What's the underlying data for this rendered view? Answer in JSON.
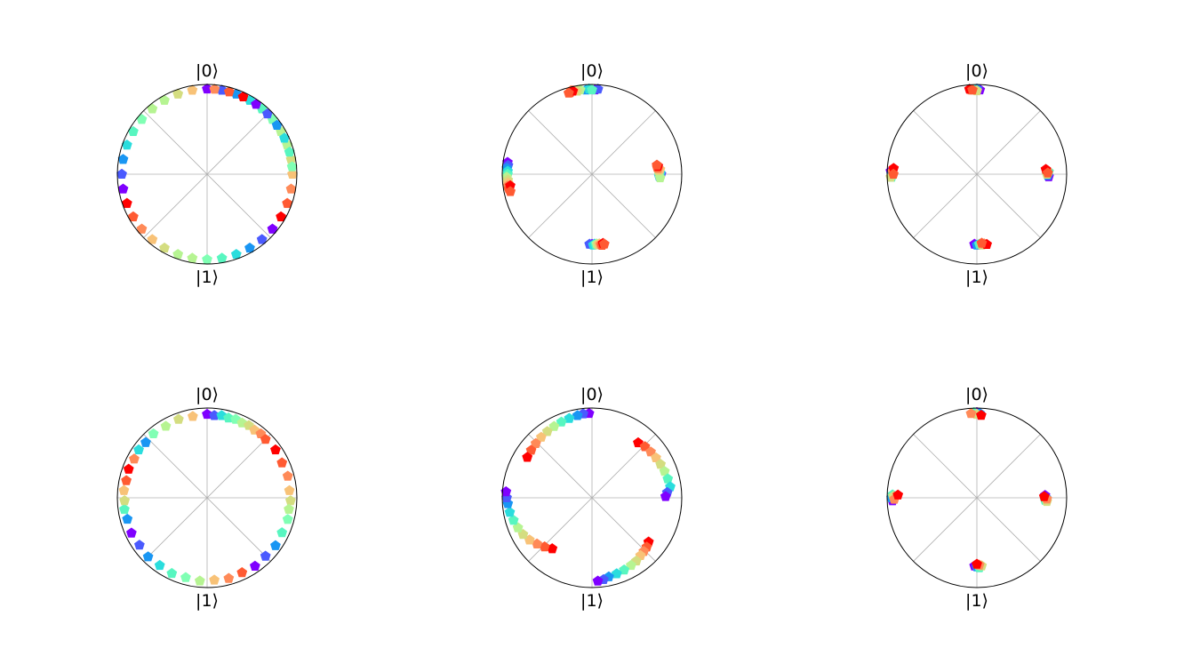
{
  "labels": {
    "top": "|0⟩",
    "bottom": "|1⟩"
  },
  "colormap": [
    "#7f00ff",
    "#4a5afe",
    "#1996f3",
    "#2adddd",
    "#58f6c0",
    "#80ffb4",
    "#b6f492",
    "#d4dd80",
    "#f8c277",
    "#ff8a58",
    "#ff5a32",
    "#ff0000"
  ],
  "chart_data": [
    {
      "type": "scatter",
      "description_axes": "polar projection; angle 0 = |0> at top, angle 180 = |1> at bottom; radius 1 = circle edge",
      "points": [
        [
          0.0,
          0.95,
          0.0
        ],
        [
          10.0,
          0.95,
          0.08
        ],
        [
          20.0,
          0.95,
          0.17
        ],
        [
          30.0,
          0.95,
          0.25
        ],
        [
          40.0,
          0.95,
          0.33
        ],
        [
          50.0,
          0.95,
          0.42
        ],
        [
          60.0,
          0.95,
          0.5
        ],
        [
          70.0,
          0.95,
          0.58
        ],
        [
          80.0,
          0.95,
          0.67
        ],
        [
          90.0,
          0.95,
          0.75
        ],
        [
          100.0,
          0.95,
          0.83
        ],
        [
          110.0,
          0.95,
          0.92
        ],
        [
          120.0,
          0.95,
          1.0
        ],
        [
          130.0,
          0.95,
          0.0
        ],
        [
          140.0,
          0.95,
          0.08
        ],
        [
          150.0,
          0.95,
          0.17
        ],
        [
          160.0,
          0.95,
          0.25
        ],
        [
          170.0,
          0.95,
          0.33
        ],
        [
          180.0,
          0.95,
          0.42
        ],
        [
          190.0,
          0.95,
          0.5
        ],
        [
          200.0,
          0.95,
          0.58
        ],
        [
          210.0,
          0.95,
          0.67
        ],
        [
          220.0,
          0.95,
          0.75
        ],
        [
          230.0,
          0.95,
          0.83
        ],
        [
          240.0,
          0.95,
          0.92
        ],
        [
          250.0,
          0.95,
          1.0
        ],
        [
          260.0,
          0.95,
          0.0
        ],
        [
          270.0,
          0.95,
          0.08
        ],
        [
          280.0,
          0.95,
          0.17
        ],
        [
          290.0,
          0.95,
          0.25
        ],
        [
          300.0,
          0.95,
          0.33
        ],
        [
          310.0,
          0.95,
          0.42
        ],
        [
          320.0,
          0.95,
          0.5
        ],
        [
          330.0,
          0.95,
          0.58
        ],
        [
          340.0,
          0.95,
          0.67
        ],
        [
          350.0,
          0.95,
          0.75
        ],
        [
          5.0,
          0.95,
          0.83
        ],
        [
          15.0,
          0.95,
          0.92
        ],
        [
          25.0,
          0.95,
          1.0
        ],
        [
          35.0,
          0.95,
          0.0
        ],
        [
          45.0,
          0.95,
          0.08
        ],
        [
          55.0,
          0.95,
          0.17
        ],
        [
          65.0,
          0.95,
          0.25
        ],
        [
          75.0,
          0.95,
          0.33
        ],
        [
          85.0,
          0.95,
          0.42
        ]
      ]
    },
    {
      "type": "scatter",
      "points": [
        [
          2,
          0.94,
          0.0
        ],
        [
          4,
          0.95,
          0.1
        ],
        [
          356,
          0.94,
          0.2
        ],
        [
          358,
          0.95,
          0.3
        ],
        [
          0,
          0.94,
          0.4
        ],
        [
          352,
          0.95,
          0.5
        ],
        [
          350,
          0.94,
          0.6
        ],
        [
          348,
          0.95,
          0.7
        ],
        [
          346,
          0.96,
          0.8
        ],
        [
          345,
          0.94,
          0.9
        ],
        [
          347,
          0.95,
          1.0
        ],
        [
          344,
          0.94,
          0.95
        ],
        [
          88,
          0.75,
          0.0
        ],
        [
          90,
          0.77,
          0.1
        ],
        [
          92,
          0.75,
          0.2
        ],
        [
          89,
          0.76,
          0.3
        ],
        [
          91,
          0.75,
          0.4
        ],
        [
          93,
          0.76,
          0.5
        ],
        [
          87,
          0.74,
          0.6
        ],
        [
          86,
          0.76,
          0.7
        ],
        [
          85,
          0.74,
          0.8
        ],
        [
          84,
          0.73,
          0.9
        ],
        [
          83,
          0.74,
          1.0
        ],
        [
          82,
          0.73,
          0.95
        ],
        [
          180,
          0.78,
          0.0
        ],
        [
          182,
          0.78,
          0.1
        ],
        [
          178,
          0.78,
          0.2
        ],
        [
          179,
          0.79,
          0.3
        ],
        [
          177,
          0.78,
          0.4
        ],
        [
          176,
          0.78,
          0.5
        ],
        [
          175,
          0.79,
          0.6
        ],
        [
          174,
          0.78,
          0.7
        ],
        [
          173,
          0.79,
          0.8
        ],
        [
          172,
          0.8,
          0.9
        ],
        [
          171,
          0.78,
          1.0
        ],
        [
          170,
          0.79,
          0.95
        ],
        [
          278,
          0.95,
          0.0
        ],
        [
          276,
          0.94,
          0.1
        ],
        [
          274,
          0.95,
          0.2
        ],
        [
          272,
          0.94,
          0.3
        ],
        [
          270,
          0.94,
          0.4
        ],
        [
          268,
          0.95,
          0.5
        ],
        [
          266,
          0.94,
          0.6
        ],
        [
          264,
          0.94,
          0.7
        ],
        [
          262,
          0.95,
          0.8
        ],
        [
          260,
          0.94,
          0.9
        ],
        [
          262,
          0.92,
          1.0
        ],
        [
          258,
          0.93,
          0.95
        ]
      ]
    },
    {
      "type": "scatter",
      "points": [
        [
          2,
          0.94,
          0.0
        ],
        [
          0,
          0.95,
          0.2
        ],
        [
          358,
          0.94,
          0.4
        ],
        [
          0,
          0.93,
          0.6
        ],
        [
          356,
          0.94,
          0.8
        ],
        [
          355,
          0.95,
          1.0
        ],
        [
          357,
          0.94,
          0.9
        ],
        [
          92,
          0.8,
          0.0
        ],
        [
          91,
          0.79,
          0.2
        ],
        [
          88,
          0.8,
          0.4
        ],
        [
          90,
          0.78,
          0.6
        ],
        [
          87,
          0.78,
          0.8
        ],
        [
          86,
          0.77,
          1.0
        ],
        [
          89,
          0.79,
          0.9
        ],
        [
          182,
          0.78,
          0.0
        ],
        [
          180,
          0.79,
          0.2
        ],
        [
          178,
          0.78,
          0.4
        ],
        [
          176,
          0.79,
          0.6
        ],
        [
          174,
          0.78,
          0.8
        ],
        [
          172,
          0.79,
          1.0
        ],
        [
          176,
          0.77,
          0.9
        ],
        [
          272,
          0.96,
          0.0
        ],
        [
          270,
          0.95,
          0.2
        ],
        [
          268,
          0.95,
          0.4
        ],
        [
          268,
          0.96,
          0.6
        ],
        [
          272,
          0.94,
          0.8
        ],
        [
          274,
          0.93,
          1.0
        ],
        [
          270,
          0.93,
          0.9
        ]
      ]
    },
    {
      "type": "scatter",
      "points": [
        [
          0,
          0.93,
          0.0
        ],
        [
          5,
          0.92,
          0.1
        ],
        [
          10,
          0.93,
          0.25
        ],
        [
          15,
          0.92,
          0.35
        ],
        [
          20,
          0.93,
          0.45
        ],
        [
          25,
          0.92,
          0.55
        ],
        [
          30,
          0.93,
          0.65
        ],
        [
          35,
          0.92,
          0.75
        ],
        [
          40,
          0.93,
          0.85
        ],
        [
          45,
          0.92,
          0.95
        ],
        [
          55,
          0.93,
          1.0
        ],
        [
          65,
          0.92,
          0.92
        ],
        [
          75,
          0.93,
          0.82
        ],
        [
          85,
          0.92,
          0.72
        ],
        [
          92,
          0.93,
          0.62
        ],
        [
          98,
          0.92,
          0.52
        ],
        [
          105,
          0.93,
          0.42
        ],
        [
          115,
          0.92,
          0.32
        ],
        [
          125,
          0.93,
          0.22
        ],
        [
          135,
          0.92,
          0.12
        ],
        [
          145,
          0.93,
          0.02
        ],
        [
          155,
          0.92,
          0.95
        ],
        [
          165,
          0.93,
          0.85
        ],
        [
          175,
          0.92,
          0.7
        ],
        [
          185,
          0.93,
          0.55
        ],
        [
          195,
          0.92,
          0.48
        ],
        [
          205,
          0.93,
          0.38
        ],
        [
          215,
          0.92,
          0.28
        ],
        [
          225,
          0.93,
          0.18
        ],
        [
          235,
          0.92,
          0.1
        ],
        [
          245,
          0.93,
          0.0
        ],
        [
          255,
          0.92,
          0.2
        ],
        [
          262,
          0.93,
          0.35
        ],
        [
          268,
          0.92,
          0.6
        ],
        [
          275,
          0.93,
          0.75
        ],
        [
          282,
          0.92,
          0.9
        ],
        [
          290,
          0.93,
          1.0
        ],
        [
          298,
          0.92,
          0.85
        ],
        [
          305,
          0.93,
          0.3
        ],
        [
          312,
          0.92,
          0.18
        ],
        [
          320,
          0.93,
          0.45
        ],
        [
          330,
          0.92,
          0.55
        ],
        [
          340,
          0.93,
          0.65
        ],
        [
          350,
          0.92,
          0.75
        ]
      ]
    },
    {
      "type": "scatter",
      "points": [
        [
          358,
          0.94,
          0.0
        ],
        [
          354,
          0.94,
          0.1
        ],
        [
          350,
          0.93,
          0.2
        ],
        [
          344,
          0.92,
          0.3
        ],
        [
          338,
          0.91,
          0.4
        ],
        [
          332,
          0.9,
          0.5
        ],
        [
          326,
          0.89,
          0.6
        ],
        [
          320,
          0.88,
          0.7
        ],
        [
          314,
          0.87,
          0.8
        ],
        [
          308,
          0.86,
          0.9
        ],
        [
          302,
          0.85,
          1.0
        ],
        [
          40,
          0.8,
          1.0
        ],
        [
          46,
          0.82,
          0.9
        ],
        [
          52,
          0.83,
          0.8
        ],
        [
          58,
          0.84,
          0.7
        ],
        [
          64,
          0.85,
          0.6
        ],
        [
          70,
          0.86,
          0.5
        ],
        [
          76,
          0.87,
          0.4
        ],
        [
          82,
          0.88,
          0.3
        ],
        [
          86,
          0.84,
          0.1
        ],
        [
          89,
          0.82,
          0.0
        ],
        [
          128,
          0.8,
          1.0
        ],
        [
          132,
          0.82,
          0.9
        ],
        [
          136,
          0.83,
          0.8
        ],
        [
          140,
          0.84,
          0.7
        ],
        [
          145,
          0.86,
          0.6
        ],
        [
          150,
          0.87,
          0.5
        ],
        [
          156,
          0.88,
          0.4
        ],
        [
          162,
          0.89,
          0.3
        ],
        [
          168,
          0.9,
          0.2
        ],
        [
          172,
          0.92,
          0.1
        ],
        [
          176,
          0.93,
          0.0
        ],
        [
          218,
          0.72,
          1.0
        ],
        [
          224,
          0.76,
          0.9
        ],
        [
          230,
          0.8,
          0.8
        ],
        [
          236,
          0.84,
          0.7
        ],
        [
          242,
          0.87,
          0.6
        ],
        [
          248,
          0.89,
          0.5
        ],
        [
          254,
          0.91,
          0.4
        ],
        [
          260,
          0.93,
          0.3
        ],
        [
          266,
          0.94,
          0.2
        ],
        [
          270,
          0.95,
          0.1
        ],
        [
          274,
          0.96,
          0.0
        ]
      ]
    },
    {
      "type": "scatter",
      "points": [
        [
          0,
          0.95,
          0.0
        ],
        [
          2,
          0.94,
          0.2
        ],
        [
          358,
          0.95,
          0.4
        ],
        [
          360,
          0.93,
          0.6
        ],
        [
          356,
          0.94,
          0.8
        ],
        [
          3,
          0.92,
          1.0
        ],
        [
          88,
          0.76,
          0.0
        ],
        [
          90,
          0.77,
          0.2
        ],
        [
          92,
          0.76,
          0.4
        ],
        [
          93,
          0.78,
          0.6
        ],
        [
          91,
          0.78,
          0.8
        ],
        [
          89,
          0.75,
          1.0
        ],
        [
          182,
          0.76,
          0.0
        ],
        [
          180,
          0.77,
          0.2
        ],
        [
          178,
          0.78,
          0.4
        ],
        [
          176,
          0.76,
          0.6
        ],
        [
          178,
          0.75,
          0.8
        ],
        [
          180,
          0.74,
          1.0
        ],
        [
          268,
          0.94,
          0.0
        ],
        [
          270,
          0.95,
          0.2
        ],
        [
          272,
          0.94,
          0.4
        ],
        [
          271,
          0.93,
          0.6
        ],
        [
          269,
          0.92,
          0.8
        ],
        [
          272,
          0.88,
          1.0
        ]
      ]
    }
  ]
}
